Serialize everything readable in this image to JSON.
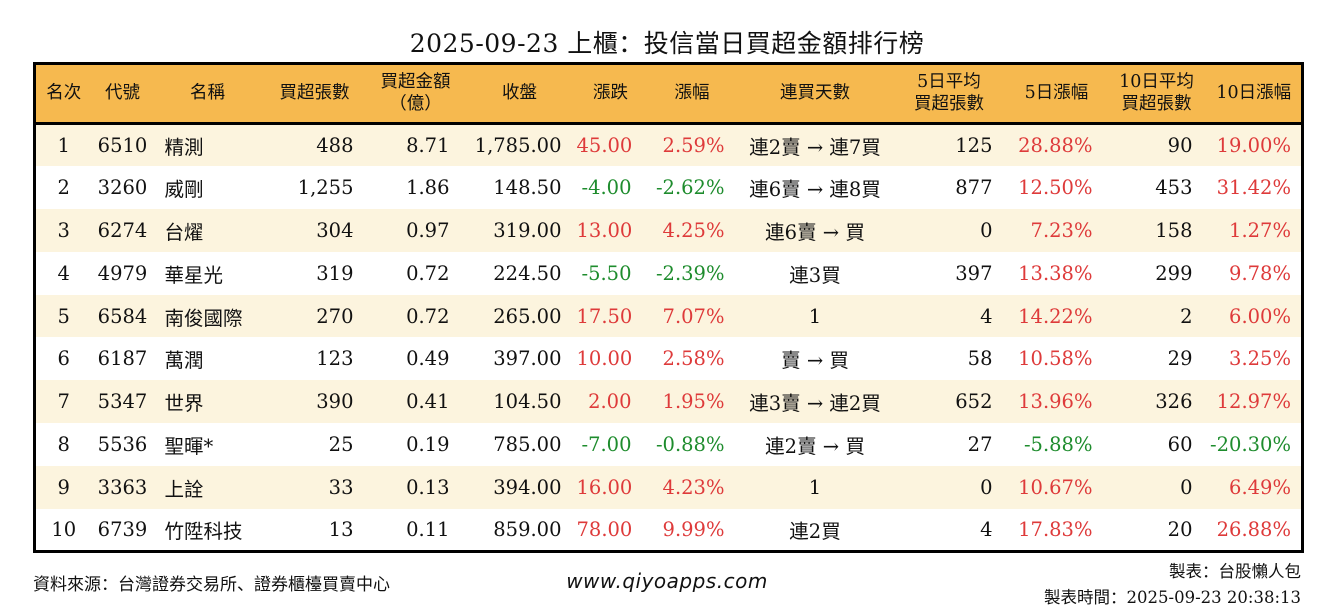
{
  "title": "2025-09-23 上櫃：投信當日買超金額排行榜",
  "colors": {
    "header_bg": "#F6B94F",
    "row_alt_bg": "#FCF4DE",
    "up_red": "#DE3A3A",
    "down_green": "#1E8C2D"
  },
  "chart_data": {
    "type": "table",
    "title": "2025-09-23 上櫃：投信當日買超金額排行榜",
    "keys": [
      "rank",
      "code",
      "name",
      "vol",
      "amt",
      "close",
      "chg",
      "chg_pct",
      "streak",
      "avg5",
      "pct5",
      "avg10",
      "pct10"
    ],
    "columns": [
      "名次",
      "代號",
      "名稱",
      "買超張數",
      "買超金額\n（億）",
      "收盤",
      "漲跌",
      "漲幅",
      "連買天數",
      "5日平均\n買超張數",
      "5日漲幅",
      "10日平均\n買超張數",
      "10日漲幅"
    ],
    "signed_column_keys": [
      "chg",
      "chg_pct",
      "pct5",
      "pct10"
    ],
    "rows": [
      [
        "1",
        "6510",
        "精測",
        "488",
        "8.71",
        "1,785.00",
        "45.00",
        "2.59%",
        "連2賣 → 連7買",
        "125",
        "28.88%",
        "90",
        "19.00%"
      ],
      [
        "2",
        "3260",
        "威剛",
        "1,255",
        "1.86",
        "148.50",
        "-4.00",
        "-2.62%",
        "連6賣 → 連8買",
        "877",
        "12.50%",
        "453",
        "31.42%"
      ],
      [
        "3",
        "6274",
        "台燿",
        "304",
        "0.97",
        "319.00",
        "13.00",
        "4.25%",
        "連6賣 → 買",
        "0",
        "7.23%",
        "158",
        "1.27%"
      ],
      [
        "4",
        "4979",
        "華星光",
        "319",
        "0.72",
        "224.50",
        "-5.50",
        "-2.39%",
        "連3買",
        "397",
        "13.38%",
        "299",
        "9.78%"
      ],
      [
        "5",
        "6584",
        "南俊國際",
        "270",
        "0.72",
        "265.00",
        "17.50",
        "7.07%",
        "1",
        "4",
        "14.22%",
        "2",
        "6.00%"
      ],
      [
        "6",
        "6187",
        "萬潤",
        "123",
        "0.49",
        "397.00",
        "10.00",
        "2.58%",
        "賣 → 買",
        "58",
        "10.58%",
        "29",
        "3.25%"
      ],
      [
        "7",
        "5347",
        "世界",
        "390",
        "0.41",
        "104.50",
        "2.00",
        "1.95%",
        "連3賣 → 連2買",
        "652",
        "13.96%",
        "326",
        "12.97%"
      ],
      [
        "8",
        "5536",
        "聖暉*",
        "25",
        "0.19",
        "785.00",
        "-7.00",
        "-0.88%",
        "連2賣 → 買",
        "27",
        "-5.88%",
        "60",
        "-20.30%"
      ],
      [
        "9",
        "3363",
        "上詮",
        "33",
        "0.13",
        "394.00",
        "16.00",
        "4.23%",
        "1",
        "0",
        "10.67%",
        "0",
        "6.49%"
      ],
      [
        "10",
        "6739",
        "竹陞科技",
        "13",
        "0.11",
        "859.00",
        "78.00",
        "9.99%",
        "連2買",
        "4",
        "17.83%",
        "20",
        "26.88%"
      ]
    ]
  },
  "footer": {
    "source": "資料來源：台灣證券交易所、證券櫃檯買賣中心",
    "website": "www.qiyoapps.com",
    "maker": "製表：台股懶人包",
    "made_at": "製表時間：2025-09-23 20:38:13"
  }
}
